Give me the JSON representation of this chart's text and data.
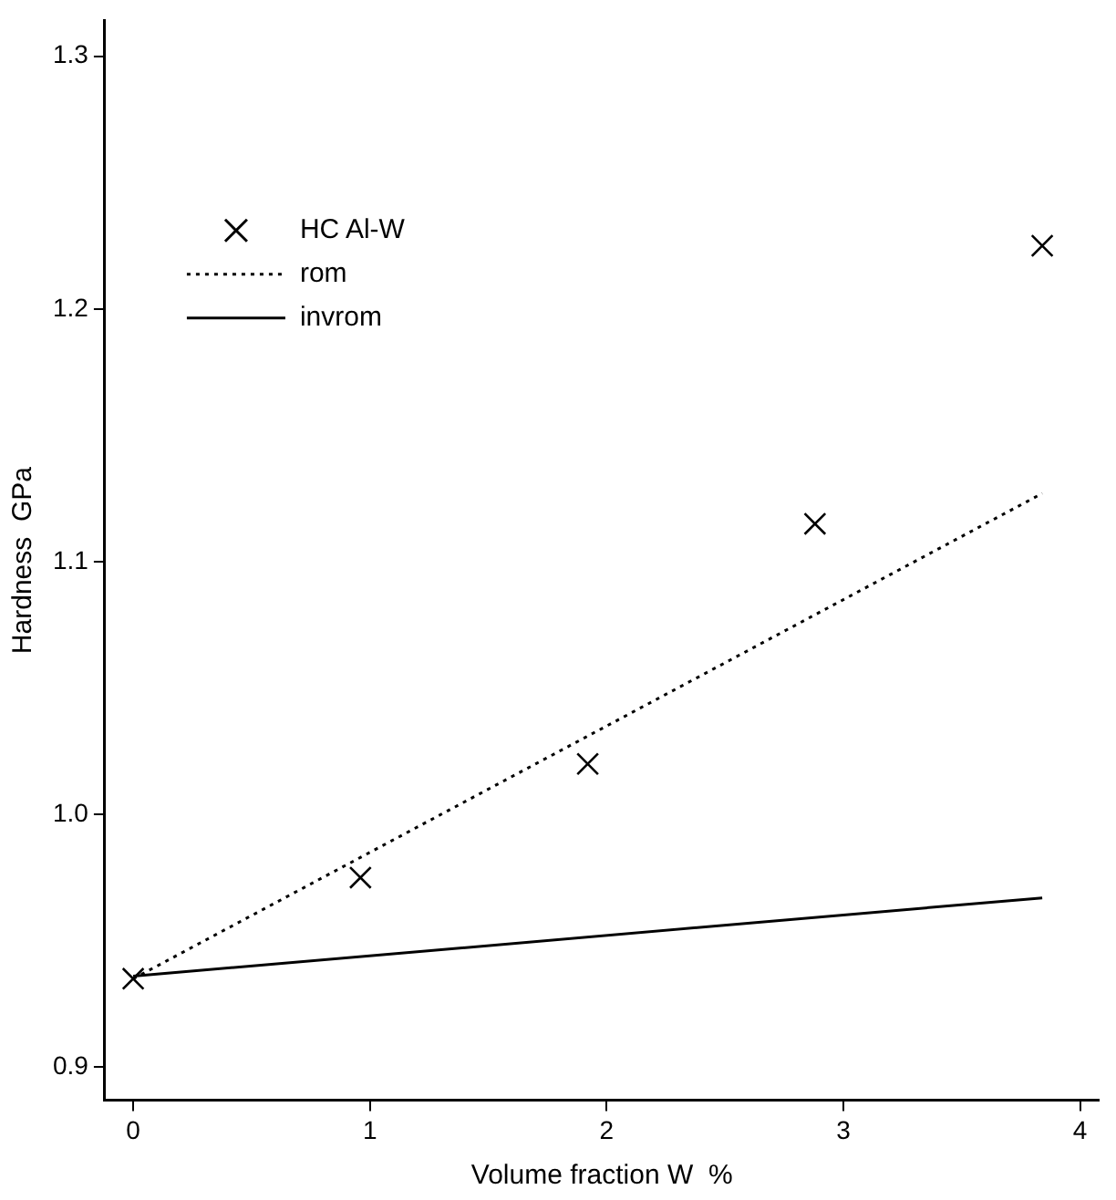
{
  "chart_data": {
    "type": "scatter",
    "xlabel": "Volume fraction W  %",
    "ylabel": "Hardness  GPa",
    "xlim": [
      -0.12,
      4.08
    ],
    "ylim": [
      0.887,
      1.314
    ],
    "xticks": [
      0,
      1,
      2,
      3,
      4
    ],
    "yticks": [
      {
        "value": 0.9,
        "label": "0.9"
      },
      {
        "value": 1,
        "label": "1.0"
      },
      {
        "value": 1.1,
        "label": "1.1"
      },
      {
        "value": 1.2,
        "label": "1.2"
      },
      {
        "value": 1.3,
        "label": "1.3"
      }
    ],
    "grid": false,
    "legend": "top left",
    "series": [
      {
        "name": "HC Al-W",
        "type": "scatter",
        "marker": "cross",
        "color": "#000000",
        "x": [
          0,
          0.96,
          1.92,
          2.88,
          3.84
        ],
        "values": [
          0.935,
          0.975,
          1.02,
          1.115,
          1.225
        ]
      },
      {
        "name": "rom",
        "type": "line",
        "line_style": "dotted",
        "marker": "none",
        "color": "#000000",
        "x": [
          0,
          3.84
        ],
        "values": [
          0.935,
          1.127
        ]
      },
      {
        "name": "invrom",
        "type": "line",
        "line_style": "solid",
        "marker": "none",
        "color": "#000000",
        "x": [
          0,
          3.84
        ],
        "values": [
          0.936,
          0.967
        ]
      }
    ]
  }
}
